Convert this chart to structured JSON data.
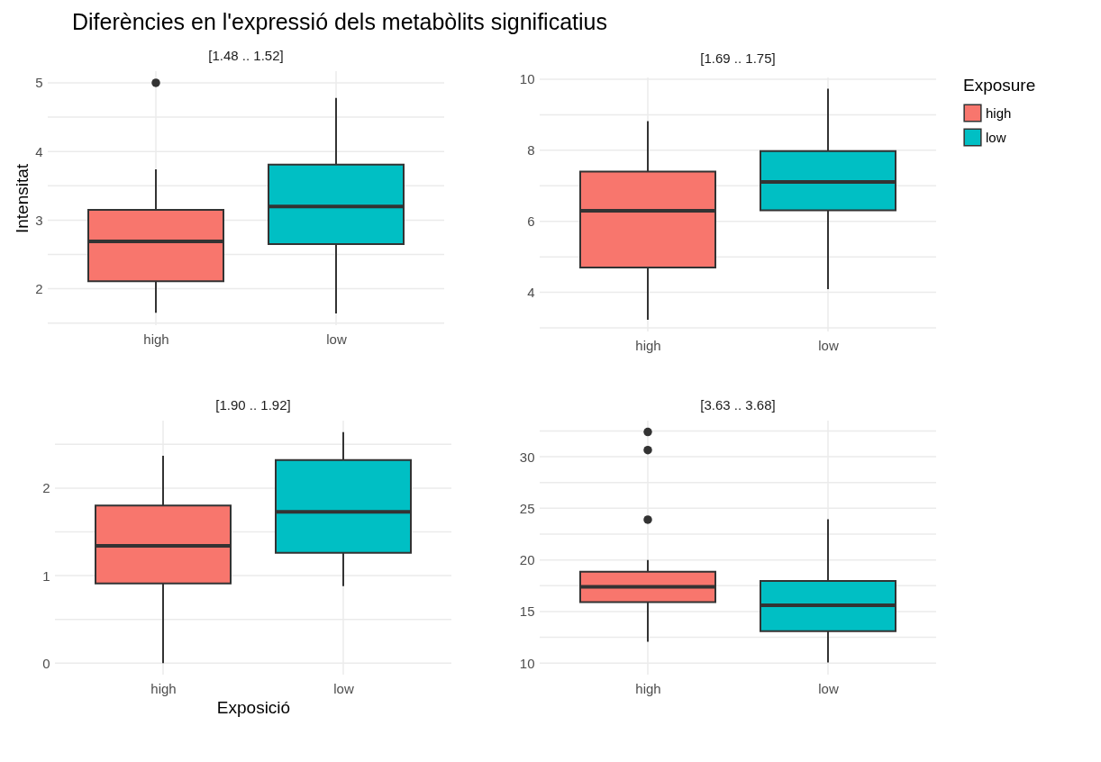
{
  "chart_data": [
    {
      "type": "box",
      "title": "Diferències en l'expressió dels metabòlits significatius",
      "subtitle": "[1.48 .. 1.52]",
      "ylabel": "Intensitat",
      "categories": [
        "high",
        "low"
      ],
      "ylim": [
        1.47,
        5.17
      ],
      "yticks": [
        {
          "value": 1.5,
          "label": null
        },
        2,
        {
          "value": 2.5,
          "label": null
        },
        3,
        {
          "value": 3.5,
          "label": null
        },
        4,
        {
          "value": 4.5,
          "label": null
        },
        5
      ],
      "grid": true,
      "series": [
        {
          "color": "#f8766d",
          "boxes": [
            {
              "low": 1.65,
              "q1": 2.11,
              "median": 2.69,
              "q3": 3.15,
              "high": 3.74,
              "outliers": [
                5.0
              ]
            },
            null
          ]
        },
        {
          "color": "#00bfc4",
          "boxes": [
            null,
            {
              "low": 1.64,
              "q1": 2.65,
              "median": 3.2,
              "q3": 3.81,
              "high": 4.78
            }
          ]
        }
      ]
    },
    {
      "type": "box",
      "subtitle": "[1.69 .. 1.75]",
      "legend_title": "Exposure",
      "legend": "right",
      "categories": [
        "high",
        "low"
      ],
      "ylim": [
        2.9,
        10.05
      ],
      "yticks": [
        {
          "value": 3,
          "label": null
        },
        4,
        {
          "value": 5,
          "label": null
        },
        6,
        {
          "value": 7,
          "label": null
        },
        8,
        {
          "value": 9,
          "label": null
        },
        10
      ],
      "grid": true,
      "series": [
        {
          "name": "high",
          "color": "#f8766d",
          "boxes": [
            {
              "low": 3.23,
              "q1": 4.7,
              "median": 6.3,
              "q3": 7.4,
              "high": 8.82
            },
            null
          ]
        },
        {
          "name": "low",
          "color": "#00bfc4",
          "boxes": [
            null,
            {
              "low": 4.09,
              "q1": 6.31,
              "median": 7.11,
              "q3": 7.98,
              "high": 9.73
            }
          ]
        }
      ]
    },
    {
      "type": "box",
      "subtitle": "[1.90 .. 1.92]",
      "xlabel": "Exposició",
      "categories": [
        "high",
        "low"
      ],
      "ylim": [
        -0.13,
        2.77
      ],
      "yticks": [
        0,
        {
          "value": 0.5,
          "label": null
        },
        1,
        {
          "value": 1.5,
          "label": null
        },
        2,
        {
          "value": 2.5,
          "label": null
        }
      ],
      "grid": true,
      "series": [
        {
          "color": "#f8766d",
          "boxes": [
            {
              "low": 0,
              "q1": 0.91,
              "median": 1.34,
              "q3": 1.8,
              "high": 2.37
            },
            null
          ]
        },
        {
          "color": "#00bfc4",
          "boxes": [
            null,
            {
              "low": 0.88,
              "q1": 1.26,
              "median": 1.73,
              "q3": 2.32,
              "high": 2.64
            }
          ]
        }
      ]
    },
    {
      "type": "box",
      "subtitle": "[3.63 .. 3.68]",
      "categories": [
        "high",
        "low"
      ],
      "ylim": [
        8.88,
        33.5
      ],
      "yticks": [
        10,
        {
          "value": 12.5,
          "label": null
        },
        15,
        {
          "value": 17.5,
          "label": null
        },
        20,
        {
          "value": 22.5,
          "label": null
        },
        25,
        {
          "value": 27.5,
          "label": null
        },
        30,
        {
          "value": 32.5,
          "label": null
        }
      ],
      "grid": true,
      "series": [
        {
          "color": "#f8766d",
          "boxes": [
            {
              "low": 12.06,
              "q1": 15.9,
              "median": 17.4,
              "q3": 18.85,
              "high": 20.0,
              "outliers": [
                32.4,
                30.65,
                23.9
              ]
            },
            null
          ]
        },
        {
          "color": "#00bfc4",
          "boxes": [
            null,
            {
              "low": 10.05,
              "q1": 13.1,
              "median": 15.6,
              "q3": 17.95,
              "high": 23.95
            }
          ]
        }
      ]
    }
  ]
}
